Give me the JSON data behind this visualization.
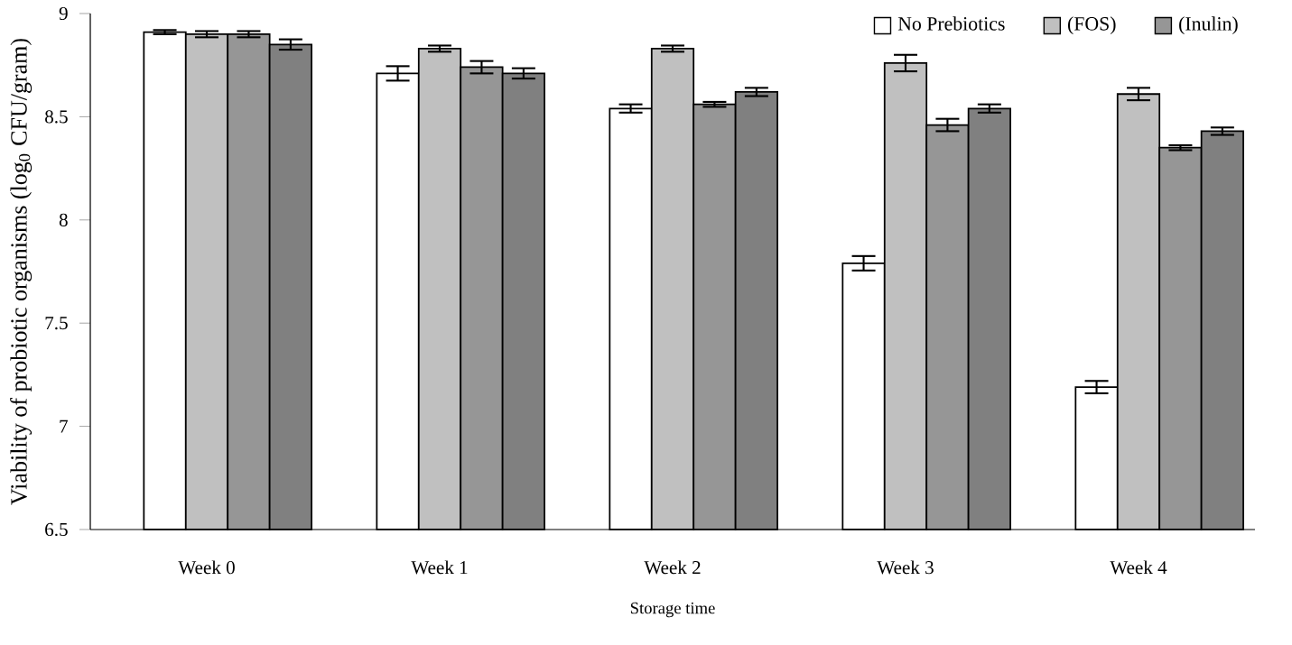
{
  "chart_data": {
    "type": "bar",
    "xlabel": "Storage time",
    "ylabel": "Viability of probiotic organisms (log$_{0}$ CFU/gram)",
    "categories": [
      "Week 0",
      "Week 1",
      "Week 2",
      "Week 3",
      "Week 4"
    ],
    "series": [
      {
        "name": "No Prebiotics",
        "color": "#ffffff",
        "values": [
          8.91,
          8.71,
          8.54,
          7.79,
          7.19
        ],
        "errors": [
          0.01,
          0.035,
          0.02,
          0.035,
          0.03
        ]
      },
      {
        "name": "(FOS)",
        "color": "#c0c0c0",
        "values": [
          8.9,
          8.83,
          8.83,
          8.76,
          8.61
        ],
        "errors": [
          0.015,
          0.015,
          0.015,
          0.04,
          0.03
        ]
      },
      {
        "name": "(Inulin)",
        "color": "#969696",
        "values": [
          8.9,
          8.74,
          8.56,
          8.46,
          8.35
        ],
        "errors": [
          0.015,
          0.03,
          0.012,
          0.03,
          0.012
        ]
      },
      {
        "color": "#808080",
        "values": [
          8.85,
          8.71,
          8.62,
          8.54,
          8.43
        ],
        "errors": [
          0.025,
          0.025,
          0.02,
          0.02,
          0.018
        ]
      }
    ],
    "ylim": [
      6.5,
      9
    ],
    "yticks": [
      6.5,
      7,
      7.5,
      8,
      8.5,
      9
    ],
    "grid": false,
    "legend": "top right"
  }
}
